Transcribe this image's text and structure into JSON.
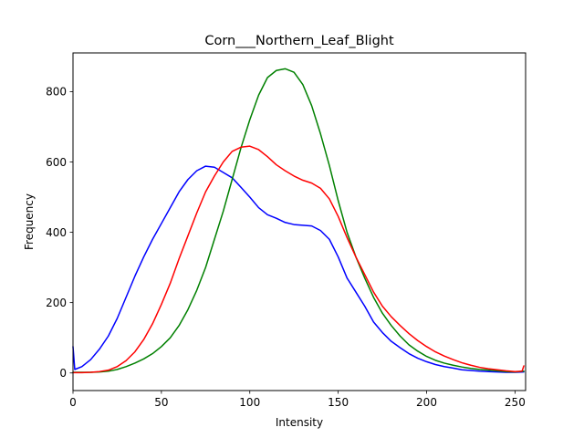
{
  "chart_data": {
    "type": "line",
    "title": "Corn___Northern_Leaf_Blight",
    "xlabel": "Intensity",
    "ylabel": "Frequency",
    "xlim": [
      0,
      256
    ],
    "ylim": [
      -50,
      910
    ],
    "xticks": [
      0,
      50,
      100,
      150,
      200,
      250
    ],
    "yticks": [
      0,
      200,
      400,
      600,
      800
    ],
    "grid": false,
    "legend": "none",
    "series": [
      {
        "color": "#0000ff",
        "x": [
          0,
          1,
          5,
          10,
          15,
          20,
          25,
          30,
          35,
          40,
          45,
          50,
          55,
          60,
          65,
          70,
          75,
          80,
          85,
          90,
          95,
          100,
          105,
          110,
          115,
          120,
          125,
          130,
          135,
          140,
          145,
          150,
          155,
          160,
          165,
          170,
          175,
          180,
          185,
          190,
          195,
          200,
          205,
          210,
          215,
          220,
          225,
          230,
          235,
          240,
          245,
          250,
          255
        ],
        "values": [
          75,
          10,
          18,
          38,
          68,
          105,
          155,
          215,
          275,
          330,
          380,
          425,
          470,
          515,
          550,
          575,
          588,
          585,
          570,
          555,
          528,
          500,
          470,
          450,
          440,
          428,
          422,
          420,
          418,
          405,
          380,
          330,
          270,
          230,
          190,
          145,
          115,
          90,
          72,
          55,
          42,
          32,
          24,
          18,
          14,
          9,
          7,
          5,
          4,
          3,
          2,
          2,
          3
        ]
      },
      {
        "color": "#008000",
        "x": [
          0,
          5,
          10,
          15,
          20,
          25,
          30,
          35,
          40,
          45,
          50,
          55,
          60,
          65,
          70,
          75,
          80,
          85,
          90,
          95,
          100,
          105,
          110,
          115,
          120,
          125,
          130,
          135,
          140,
          145,
          150,
          155,
          160,
          165,
          170,
          175,
          180,
          185,
          190,
          195,
          200,
          205,
          210,
          215,
          220,
          225,
          230,
          235,
          240,
          245,
          250,
          255
        ],
        "values": [
          2,
          2,
          2,
          3,
          5,
          10,
          18,
          28,
          40,
          55,
          75,
          100,
          135,
          180,
          235,
          300,
          380,
          460,
          550,
          640,
          720,
          790,
          840,
          860,
          865,
          855,
          820,
          760,
          680,
          590,
          490,
          400,
          330,
          270,
          215,
          170,
          135,
          105,
          80,
          62,
          47,
          36,
          28,
          22,
          17,
          13,
          10,
          8,
          6,
          4,
          3,
          5
        ]
      },
      {
        "color": "#ff0000",
        "x": [
          0,
          5,
          10,
          15,
          20,
          25,
          30,
          35,
          40,
          45,
          50,
          55,
          60,
          65,
          70,
          75,
          80,
          85,
          90,
          95,
          100,
          105,
          110,
          115,
          120,
          125,
          130,
          135,
          140,
          145,
          150,
          155,
          160,
          165,
          170,
          175,
          180,
          185,
          190,
          195,
          200,
          205,
          210,
          215,
          220,
          225,
          230,
          235,
          240,
          245,
          250,
          254,
          255
        ],
        "values": [
          1,
          1,
          2,
          4,
          8,
          18,
          35,
          60,
          95,
          140,
          195,
          255,
          325,
          390,
          455,
          515,
          560,
          600,
          630,
          642,
          645,
          635,
          615,
          592,
          575,
          560,
          548,
          540,
          525,
          495,
          445,
          385,
          330,
          280,
          230,
          190,
          160,
          135,
          112,
          92,
          75,
          60,
          48,
          38,
          29,
          22,
          16,
          12,
          9,
          6,
          4,
          5,
          20
        ]
      }
    ]
  }
}
